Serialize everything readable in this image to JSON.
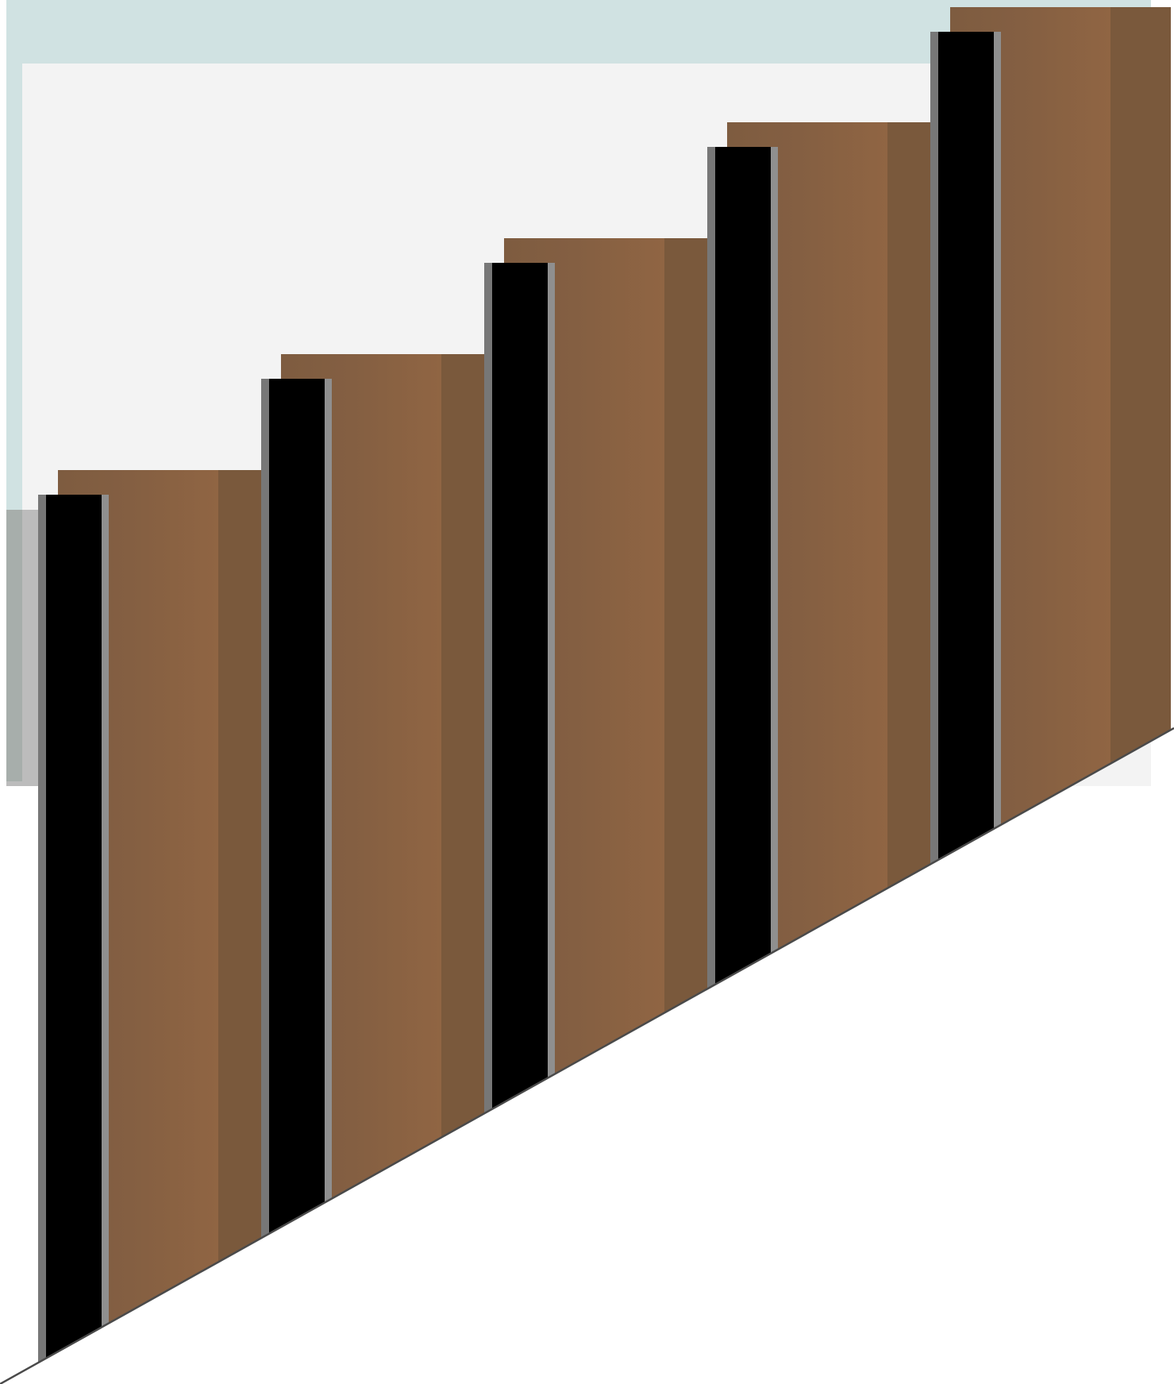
{
  "scene": {
    "subject": "staircase-side-elevation",
    "step_count": 5,
    "baluster_count": 5
  },
  "colors": {
    "background": "#ffffff",
    "wall_frame": "#d0e2e2",
    "wall_panel": "#f3f3f3",
    "plinth": "#bcbcbc",
    "plinth_shadow": "#a7aeab",
    "wood_dark": "#7e5c40",
    "wood_light": "#906543",
    "wood_shadow": "#7a593c",
    "baluster": "#000000",
    "baluster_edge": "#777777",
    "baluster_edge_light": "#8f8f8f",
    "stringer_line": "#4a4a4a"
  }
}
